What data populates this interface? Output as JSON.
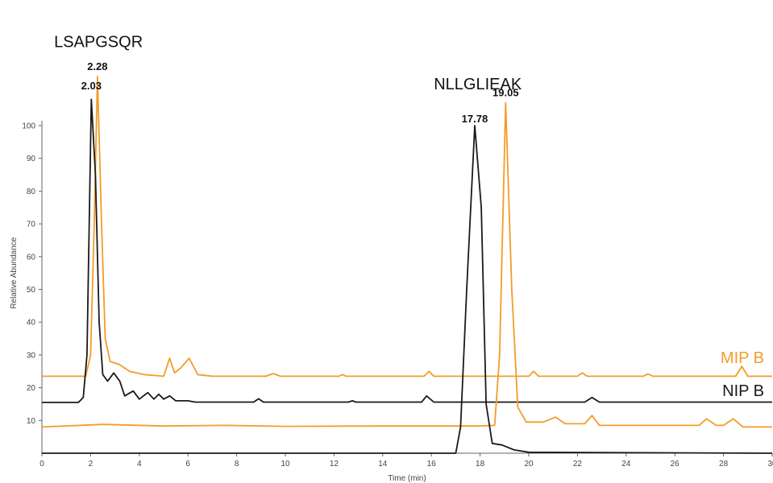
{
  "chart_data": {
    "type": "line",
    "title": "",
    "xlabel": "Time (min)",
    "ylabel": "Relative Abundance",
    "xlim": [
      0,
      30
    ],
    "ylim": [
      0,
      105
    ],
    "x_ticks": [
      0,
      2,
      4,
      6,
      8,
      10,
      12,
      14,
      16,
      18,
      20,
      22,
      24,
      26,
      28,
      30
    ],
    "y_ticks": [
      10,
      20,
      30,
      40,
      50,
      60,
      70,
      80,
      90,
      100
    ],
    "grid": false,
    "colors": {
      "MIP B": "#F39C28",
      "NIP B": "#1a1a1a"
    },
    "peak_names": [
      {
        "text": "LSAPGSQR",
        "x": 0.5,
        "y": 124
      },
      {
        "text": "NLLGLIEAK",
        "x": 16.1,
        "y": 111
      }
    ],
    "peak_labels": [
      {
        "text": "2.28",
        "x": 2.28,
        "y": 117,
        "series": "MIP B"
      },
      {
        "text": "2.03",
        "x": 2.03,
        "y": 111,
        "series": "NIP B"
      },
      {
        "text": "17.78",
        "x": 17.78,
        "y": 101,
        "series": "NIP B"
      },
      {
        "text": "19.05",
        "x": 19.05,
        "y": 109,
        "series": "MIP B"
      }
    ],
    "series": [
      {
        "name": "MIP B",
        "color": "#F39C28",
        "points": [
          [
            0,
            23.5
          ],
          [
            1.8,
            23.5
          ],
          [
            2.0,
            30
          ],
          [
            2.15,
            70
          ],
          [
            2.28,
            115
          ],
          [
            2.45,
            70
          ],
          [
            2.6,
            35
          ],
          [
            2.8,
            28
          ],
          [
            3.2,
            27
          ],
          [
            3.6,
            25
          ],
          [
            4.2,
            24
          ],
          [
            5.0,
            23.5
          ],
          [
            5.25,
            29
          ],
          [
            5.45,
            24.5
          ],
          [
            5.7,
            26
          ],
          [
            6.05,
            29
          ],
          [
            6.4,
            24
          ],
          [
            7,
            23.5
          ],
          [
            9.2,
            23.5
          ],
          [
            9.5,
            24.3
          ],
          [
            9.8,
            23.5
          ],
          [
            12.2,
            23.5
          ],
          [
            12.35,
            24
          ],
          [
            12.5,
            23.5
          ],
          [
            15.7,
            23.5
          ],
          [
            15.9,
            25
          ],
          [
            16.1,
            23.5
          ],
          [
            20,
            23.5
          ],
          [
            20.2,
            25
          ],
          [
            20.4,
            23.5
          ],
          [
            22,
            23.5
          ],
          [
            22.2,
            24.5
          ],
          [
            22.4,
            23.5
          ],
          [
            24.7,
            23.5
          ],
          [
            24.9,
            24.2
          ],
          [
            25.1,
            23.5
          ],
          [
            28.5,
            23.5
          ],
          [
            28.75,
            26.5
          ],
          [
            29.0,
            23.5
          ],
          [
            30,
            23.5
          ]
        ]
      },
      {
        "name": "NIP B",
        "color": "#1a1a1a",
        "points": [
          [
            0,
            15.5
          ],
          [
            1.5,
            15.5
          ],
          [
            1.7,
            17
          ],
          [
            1.85,
            30
          ],
          [
            2.03,
            108
          ],
          [
            2.2,
            85
          ],
          [
            2.35,
            40
          ],
          [
            2.5,
            24
          ],
          [
            2.7,
            22
          ],
          [
            2.95,
            24.5
          ],
          [
            3.2,
            22
          ],
          [
            3.4,
            17.5
          ],
          [
            3.75,
            19
          ],
          [
            4.0,
            16.5
          ],
          [
            4.35,
            18.5
          ],
          [
            4.6,
            16.5
          ],
          [
            4.8,
            18
          ],
          [
            5.0,
            16.5
          ],
          [
            5.25,
            17.5
          ],
          [
            5.5,
            16
          ],
          [
            6.0,
            16
          ],
          [
            6.3,
            15.6
          ],
          [
            8.7,
            15.6
          ],
          [
            8.9,
            16.6
          ],
          [
            9.1,
            15.6
          ],
          [
            12.6,
            15.6
          ],
          [
            12.75,
            16
          ],
          [
            12.9,
            15.6
          ],
          [
            15.6,
            15.6
          ],
          [
            15.8,
            17.5
          ],
          [
            16.1,
            15.6
          ],
          [
            22.3,
            15.6
          ],
          [
            22.6,
            17
          ],
          [
            22.9,
            15.6
          ],
          [
            30,
            15.6
          ]
        ]
      },
      {
        "name": "MIP B",
        "color": "#F39C28",
        "points": [
          [
            0,
            8
          ],
          [
            2.5,
            8.8
          ],
          [
            5,
            8.3
          ],
          [
            7.5,
            8.5
          ],
          [
            10,
            8.2
          ],
          [
            14,
            8.3
          ],
          [
            18,
            8.3
          ],
          [
            18.6,
            8.5
          ],
          [
            18.8,
            30
          ],
          [
            19.05,
            107
          ],
          [
            19.3,
            50
          ],
          [
            19.55,
            14
          ],
          [
            19.9,
            9.5
          ],
          [
            20.6,
            9.5
          ],
          [
            21.1,
            11
          ],
          [
            21.5,
            9
          ],
          [
            22.3,
            9
          ],
          [
            22.6,
            11.5
          ],
          [
            22.9,
            8.5
          ],
          [
            27.0,
            8.5
          ],
          [
            27.3,
            10.5
          ],
          [
            27.7,
            8.5
          ],
          [
            28.0,
            8.5
          ],
          [
            28.4,
            10.5
          ],
          [
            28.8,
            8
          ],
          [
            30,
            8
          ]
        ]
      },
      {
        "name": "NIP B",
        "color": "#1a1a1a",
        "points": [
          [
            0,
            0
          ],
          [
            17.0,
            0
          ],
          [
            17.2,
            8
          ],
          [
            17.45,
            50
          ],
          [
            17.78,
            100
          ],
          [
            18.05,
            75
          ],
          [
            18.25,
            15
          ],
          [
            18.5,
            3
          ],
          [
            18.9,
            2.5
          ],
          [
            19.4,
            1
          ],
          [
            20,
            0.3
          ],
          [
            30,
            0
          ]
        ]
      }
    ],
    "legend": [
      {
        "text": "MIP B",
        "color": "#F39C28",
        "placement": "right",
        "y": 27.5
      },
      {
        "text": "NIP B",
        "color": "#1a1a1a",
        "placement": "right",
        "y": 17.5
      }
    ]
  }
}
